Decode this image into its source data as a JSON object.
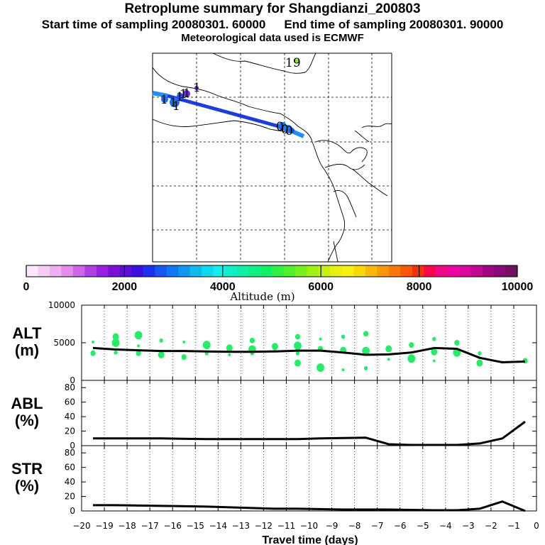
{
  "title": "Retroplume summary for Shangdianzi_200803",
  "start_time": "Start time of sampling 20080301. 60000",
  "end_time": "End time of sampling 20080301. 90000",
  "met_data": "Meteorological data used is ECMWF",
  "map": {
    "labels": [
      "19",
      "1",
      "1",
      "1",
      "1",
      "1",
      "1",
      "1",
      "0",
      "0",
      "0"
    ],
    "track_color": "#1a3ce0",
    "track_color_end": "#1e90ff"
  },
  "colorbar": {
    "title": "Altitude (m)",
    "tick_labels": [
      "0",
      "2000",
      "4000",
      "6000",
      "8000",
      "10000"
    ],
    "colors": [
      "#fbe6fb",
      "#f5ccf5",
      "#ecb0f0",
      "#e08ee8",
      "#cc66e6",
      "#b040e0",
      "#9a20e0",
      "#7a10d8",
      "#5a10d0",
      "#3a10e0",
      "#2030f0",
      "#1858f0",
      "#1078f0",
      "#1098f0",
      "#10b8f0",
      "#10d8f0",
      "#10f0e8",
      "#10f0c8",
      "#10f0a8",
      "#10f088",
      "#10f068",
      "#30f048",
      "#50f030",
      "#78f020",
      "#a0f010",
      "#c8f010",
      "#e8f010",
      "#f8f010",
      "#f8d808",
      "#f8b808",
      "#f89808",
      "#f87808",
      "#f85808",
      "#f83008",
      "#f80848",
      "#f00880",
      "#e808a0",
      "#d808a0",
      "#c00890",
      "#a00880",
      "#880878",
      "#701060"
    ]
  },
  "chart_data": [
    {
      "type": "line",
      "panel": "ALT",
      "ylabel": "ALT\n(m)",
      "ylabel_line1": "ALT",
      "ylabel_line2": "(m)",
      "ylim": [
        0,
        10000
      ],
      "yticks": [
        "10000",
        "5000",
        "0"
      ],
      "x": [
        -19.5,
        -18.5,
        -17.5,
        -16.5,
        -15.5,
        -14.5,
        -13.5,
        -12.5,
        -11.5,
        -10.5,
        -9.5,
        -8.5,
        -7.5,
        -6.5,
        -5.5,
        -4.5,
        -3.5,
        -2.5,
        -1.5,
        -0.5
      ],
      "values": [
        4300,
        4100,
        4000,
        3900,
        3900,
        3850,
        3800,
        3800,
        3850,
        3950,
        3950,
        3700,
        3400,
        3450,
        3700,
        4300,
        4200,
        3000,
        2400,
        2500
      ],
      "scatter": {
        "color": "#22ee66",
        "points": [
          [
            -19.5,
            5100
          ],
          [
            -19.5,
            3600
          ],
          [
            -18.5,
            5000
          ],
          [
            -18.5,
            3700
          ],
          [
            -18.5,
            5800
          ],
          [
            -17.5,
            4600
          ],
          [
            -17.5,
            3600
          ],
          [
            -17.5,
            6000
          ],
          [
            -16.5,
            5300
          ],
          [
            -16.5,
            3400
          ],
          [
            -15.5,
            5100
          ],
          [
            -15.5,
            3100
          ],
          [
            -14.5,
            4700
          ],
          [
            -14.5,
            3600
          ],
          [
            -13.5,
            4300
          ],
          [
            -13.5,
            3400
          ],
          [
            -12.5,
            5300
          ],
          [
            -12.5,
            4100
          ],
          [
            -12.5,
            3600
          ],
          [
            -11.5,
            4500
          ],
          [
            -11.5,
            3900
          ],
          [
            -10.5,
            5800
          ],
          [
            -10.5,
            4600
          ],
          [
            -10.5,
            3600
          ],
          [
            -10.5,
            2300
          ],
          [
            -9.5,
            5500
          ],
          [
            -9.5,
            4200
          ],
          [
            -9.5,
            1700
          ],
          [
            -8.5,
            5800
          ],
          [
            -8.5,
            4000
          ],
          [
            -8.5,
            1400
          ],
          [
            -7.5,
            6200
          ],
          [
            -7.5,
            3900
          ],
          [
            -7.5,
            1600
          ],
          [
            -6.5,
            4200
          ],
          [
            -6.5,
            2800
          ],
          [
            -5.5,
            4700
          ],
          [
            -5.5,
            2900
          ],
          [
            -4.5,
            5500
          ],
          [
            -4.5,
            3800
          ],
          [
            -4.5,
            2600
          ],
          [
            -3.5,
            5000
          ],
          [
            -3.5,
            3700
          ],
          [
            -2.5,
            3600
          ],
          [
            -2.5,
            2300
          ],
          [
            -1.5,
            2400
          ],
          [
            -0.5,
            2600
          ]
        ]
      }
    },
    {
      "type": "line",
      "panel": "ABL",
      "ylabel_line1": "ABL",
      "ylabel_line2": "(%)",
      "ylim": [
        0,
        90
      ],
      "yticks": [
        "80",
        "60",
        "40",
        "20",
        "0"
      ],
      "x": [
        -19.5,
        -16.5,
        -14.5,
        -12.5,
        -10.5,
        -9.5,
        -7.5,
        -6.5,
        -5.5,
        -3.5,
        -2.5,
        -1.5,
        -0.5
      ],
      "values": [
        10,
        10,
        9,
        9,
        9,
        10,
        11,
        2,
        1,
        1,
        3,
        10,
        33
      ]
    },
    {
      "type": "line",
      "panel": "STR",
      "ylabel_line1": "STR",
      "ylabel_line2": "(%)",
      "ylim": [
        0,
        90
      ],
      "yticks": [
        "80",
        "60",
        "40",
        "20",
        "0"
      ],
      "x": [
        -19.5,
        -18.5,
        -16.5,
        -14.5,
        -12.5,
        -11.5,
        -10.5,
        -8.5,
        -6.5,
        -4.5,
        -3.5,
        -2.5,
        -1.5,
        -0.5
      ],
      "values": [
        8,
        8,
        7,
        6,
        4,
        3,
        3,
        2,
        2,
        1,
        1,
        3,
        13,
        0
      ]
    }
  ],
  "xaxis": {
    "xlabel": "Travel time (days)",
    "xlim": [
      -20,
      0
    ],
    "tick_labels": [
      "−20",
      "−19",
      "−18",
      "−17",
      "−16",
      "−15",
      "−14",
      "−13",
      "−12",
      "−11",
      "−10",
      "−9",
      "−8",
      "−7",
      "−6",
      "−5",
      "−4",
      "−3",
      "−2",
      "−1",
      "0"
    ]
  }
}
